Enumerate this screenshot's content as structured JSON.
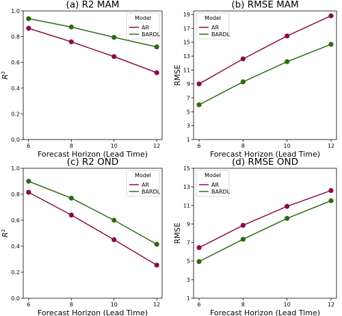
{
  "colors": {
    "AR": "#8b0b4a",
    "BARDL": "#2d6a14"
  },
  "chart_data": [
    {
      "type": "line",
      "title": "(a) R2 MAM",
      "xlabel": "Forecast Horizon (Lead Time)",
      "ylabel": "R",
      "ylabel_sup": "2",
      "x": [
        6,
        8,
        10,
        12
      ],
      "xlim": [
        5.75,
        12.25
      ],
      "ylim": [
        0.0,
        1.0
      ],
      "yticks": [
        0.0,
        0.2,
        0.4,
        0.6,
        0.8,
        1.0
      ],
      "ytick_labels": [
        "0.0",
        "0.2",
        "0.4",
        "0.6",
        "0.8",
        "1.0"
      ],
      "legend_title": "Model",
      "legend_placement": "top-right",
      "series": [
        {
          "name": "AR",
          "values": [
            0.865,
            0.76,
            0.645,
            0.52
          ]
        },
        {
          "name": "BARDL",
          "values": [
            0.94,
            0.875,
            0.795,
            0.72
          ]
        }
      ]
    },
    {
      "type": "line",
      "title": "(b) RMSE MAM",
      "xlabel": "Forecast Horizon (Lead Time)",
      "ylabel": "RMSE",
      "x": [
        6,
        8,
        10,
        12
      ],
      "xlim": [
        5.75,
        12.25
      ],
      "ylim": [
        1,
        19.5
      ],
      "yticks": [
        1,
        3,
        5,
        7,
        9,
        11,
        13,
        15,
        17,
        19
      ],
      "ytick_labels": [
        "1",
        "3",
        "5",
        "7",
        "9",
        "11",
        "13",
        "15",
        "17",
        "19"
      ],
      "legend_title": "Model",
      "legend_placement": "top-left",
      "series": [
        {
          "name": "AR",
          "values": [
            9.0,
            12.6,
            15.9,
            18.8
          ]
        },
        {
          "name": "BARDL",
          "values": [
            6.0,
            9.3,
            12.2,
            14.7
          ]
        }
      ]
    },
    {
      "type": "line",
      "title": "(c) R2 OND",
      "xlabel": "Forecast Horizon (Lead Time)",
      "ylabel": "R",
      "ylabel_sup": "2",
      "x": [
        6,
        8,
        10,
        12
      ],
      "xlim": [
        5.75,
        12.25
      ],
      "ylim": [
        0.0,
        1.0
      ],
      "yticks": [
        0.0,
        0.2,
        0.4,
        0.6,
        0.8,
        1.0
      ],
      "ytick_labels": [
        "0.0",
        "0.2",
        "0.4",
        "0.6",
        "0.8",
        "1.0"
      ],
      "legend_title": "Model",
      "legend_placement": "top-right",
      "series": [
        {
          "name": "AR",
          "values": [
            0.815,
            0.64,
            0.45,
            0.255
          ]
        },
        {
          "name": "BARDL",
          "values": [
            0.9,
            0.77,
            0.6,
            0.415
          ]
        }
      ]
    },
    {
      "type": "line",
      "title": "(d) RMSE OND",
      "xlabel": "Forecast Horizon (Lead Time)",
      "ylabel": "RMSE",
      "x": [
        6,
        8,
        10,
        12
      ],
      "xlim": [
        5.75,
        12.25
      ],
      "ylim": [
        1,
        15
      ],
      "yticks": [
        1,
        3,
        5,
        7,
        9,
        11,
        13,
        15
      ],
      "ytick_labels": [
        "1",
        "3",
        "5",
        "7",
        "9",
        "11",
        "13",
        "15"
      ],
      "legend_title": "Model",
      "legend_placement": "top-left",
      "series": [
        {
          "name": "AR",
          "values": [
            6.45,
            8.85,
            10.9,
            12.6
          ]
        },
        {
          "name": "BARDL",
          "values": [
            4.95,
            7.35,
            9.6,
            11.5
          ]
        }
      ]
    }
  ]
}
